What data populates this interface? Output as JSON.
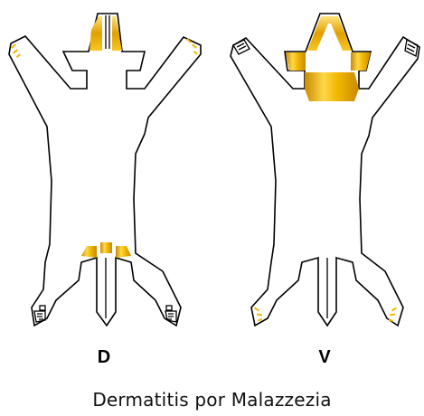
{
  "figures": [
    {
      "id": "dorsal",
      "label": "D"
    },
    {
      "id": "ventral",
      "label": "V"
    }
  ],
  "caption": "Dermatitis por Malazzezia",
  "colors": {
    "lesion_dark": "#c98a00",
    "lesion_mid": "#f2b800",
    "lesion_light": "#ffe27a",
    "outline": "#000000",
    "background": "#ffffff"
  }
}
